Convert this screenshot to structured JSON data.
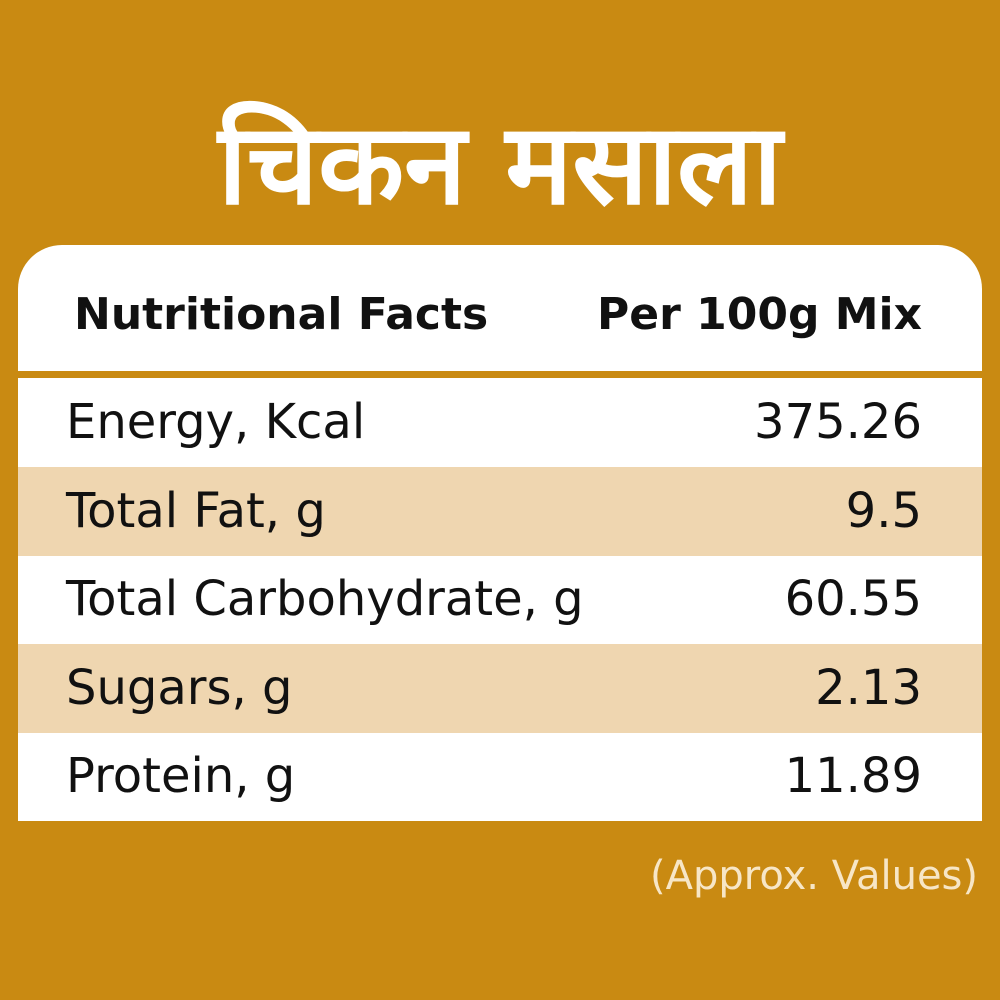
{
  "title": "चिकन मसाला",
  "table": {
    "header": [
      "Nutritional Facts",
      "Per 100g Mix"
    ],
    "rows": [
      [
        "Energy, Kcal",
        375.26
      ],
      [
        "Total Fat, g",
        9.5
      ],
      [
        "Total Carbohydrate, g",
        60.55
      ],
      [
        "Sugars, g",
        2.13
      ],
      [
        "Protein, g",
        11.89
      ]
    ]
  },
  "footnote": "(Approx. Values)"
}
